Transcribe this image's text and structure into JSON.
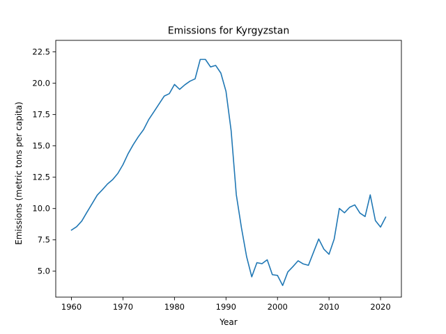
{
  "chart_data": {
    "type": "line",
    "title": "Emissions for Kyrgyzstan",
    "xlabel": "Year",
    "ylabel": "Emissions (metric tons per capita)",
    "xlim": [
      1956.95,
      2024.05
    ],
    "ylim": [
      2.93,
      23.42
    ],
    "grid": false,
    "legend": "none",
    "xticks": [
      1960,
      1970,
      1980,
      1990,
      2000,
      2010,
      2020
    ],
    "xtick_labels": [
      "1960",
      "1970",
      "1980",
      "1990",
      "2000",
      "2010",
      "2020"
    ],
    "yticks": [
      5.0,
      7.5,
      10.0,
      12.5,
      15.0,
      17.5,
      20.0,
      22.5
    ],
    "ytick_labels": [
      "5.0",
      "7.5",
      "10.0",
      "12.5",
      "15.0",
      "17.5",
      "20.0",
      "22.5"
    ],
    "line_color": "#1f77b4",
    "series": [
      {
        "x": [
          1960,
          1961,
          1962,
          1963,
          1964,
          1965,
          1966,
          1967,
          1968,
          1969,
          1970,
          1971,
          1972,
          1973,
          1974,
          1975,
          1976,
          1977,
          1978,
          1979,
          1980,
          1981,
          1982,
          1983,
          1984,
          1985,
          1986,
          1987,
          1988,
          1989,
          1990,
          1991,
          1992,
          1993,
          1994,
          1995,
          1996,
          1997,
          1998,
          1999,
          2000,
          2001,
          2002,
          2003,
          2004,
          2005,
          2006,
          2007,
          2008,
          2009,
          2010,
          2011,
          2012,
          2013,
          2014,
          2015,
          2016,
          2017,
          2018,
          2019,
          2020,
          2021
        ],
        "values": [
          8.28,
          8.55,
          9.0,
          9.7,
          10.38,
          11.07,
          11.5,
          11.96,
          12.31,
          12.8,
          13.5,
          14.38,
          15.1,
          15.74,
          16.3,
          17.1,
          17.72,
          18.34,
          18.97,
          19.17,
          19.9,
          19.51,
          19.87,
          20.16,
          20.35,
          21.9,
          21.9,
          21.3,
          21.42,
          20.81,
          19.35,
          16.2,
          11.1,
          8.46,
          6.16,
          4.55,
          5.68,
          5.6,
          5.91,
          4.72,
          4.66,
          3.86,
          4.94,
          5.37,
          5.83,
          5.58,
          5.47,
          6.52,
          7.57,
          6.76,
          6.35,
          7.56,
          10.01,
          9.66,
          10.1,
          10.29,
          9.64,
          9.36,
          11.09,
          9.04,
          8.52,
          9.31
        ]
      }
    ]
  }
}
